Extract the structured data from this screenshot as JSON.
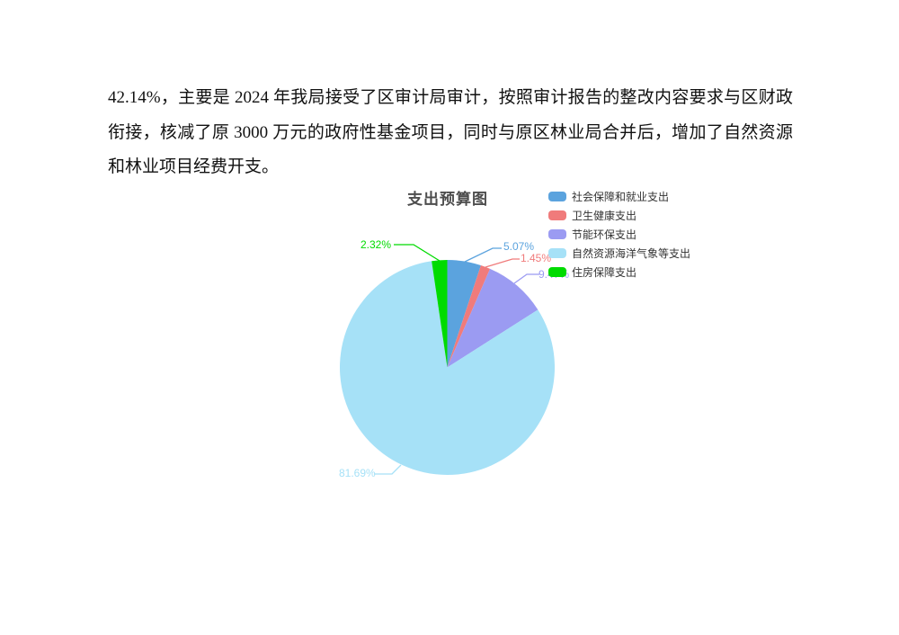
{
  "paragraph": {
    "lines": [
      "42.14%，主要是 2024 年我局接受了区审计局审计，按照审计报告的整改内容要求与区财政",
      "衔接，核减了原 3000 万元的政府性基金项目，同时与原区林业局合并后，增加了自然资源",
      "和林业项目经费开支。"
    ]
  },
  "chart_data": {
    "type": "pie",
    "title": "支出预算图",
    "legend_position": "top-right",
    "start_angle": "12-o'clock",
    "direction": "clockwise",
    "series": [
      {
        "name": "社会保障和就业支出",
        "value_pct": 5.07,
        "label": "5.07%",
        "color": "#5BA3DE"
      },
      {
        "name": "卫生健康支出",
        "value_pct": 1.45,
        "label": "1.45%",
        "color": "#F07B7B"
      },
      {
        "name": "节能环保支出",
        "value_pct": 9.47,
        "label": "9.47%",
        "color": "#9B9BF2"
      },
      {
        "name": "自然资源海洋气象等支出",
        "value_pct": 81.69,
        "label": "81.69%",
        "color": "#A6E1F7"
      },
      {
        "name": "住房保障支出",
        "value_pct": 2.32,
        "label": "2.32%",
        "color": "#00DB00"
      }
    ],
    "colors": {
      "title_text": "#4d4d4d",
      "legend_text": "#333333"
    }
  }
}
